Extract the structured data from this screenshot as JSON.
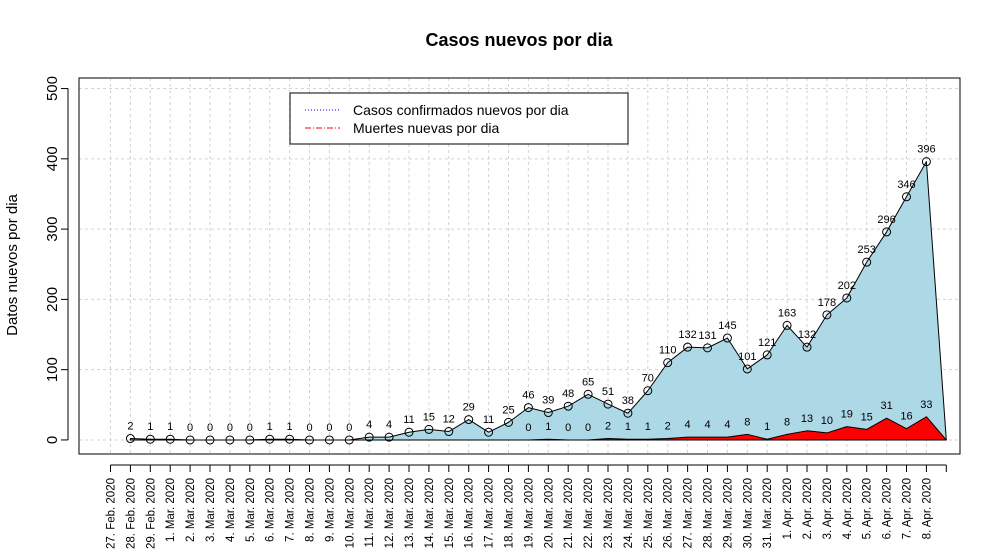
{
  "chart_data": {
    "type": "area",
    "title": "Casos nuevos por dia",
    "xlabel": "",
    "ylabel": "Datos nuevos por dia",
    "ylim": [
      -20,
      515
    ],
    "yticks": [
      0,
      100,
      200,
      300,
      400,
      500
    ],
    "grid": true,
    "legend_position": "top-center",
    "categories": [
      "27. Feb. 2020",
      "28. Feb. 2020",
      "29. Feb. 2020",
      "1. Mar. 2020",
      "2. Mar. 2020",
      "3. Mar. 2020",
      "4. Mar. 2020",
      "5. Mar. 2020",
      "6. Mar. 2020",
      "7. Mar. 2020",
      "8. Mar. 2020",
      "9. Mar. 2020",
      "10. Mar. 2020",
      "11. Mar. 2020",
      "12. Mar. 2020",
      "13. Mar. 2020",
      "14. Mar. 2020",
      "15. Mar. 2020",
      "16. Mar. 2020",
      "17. Mar. 2020",
      "18. Mar. 2020",
      "19. Mar. 2020",
      "20. Mar. 2020",
      "21. Mar. 2020",
      "22. Mar. 2020",
      "23. Mar. 2020",
      "24. Mar. 2020",
      "25. Mar. 2020",
      "26. Mar. 2020",
      "27. Mar. 2020",
      "28. Mar. 2020",
      "29. Mar. 2020",
      "30. Mar. 2020",
      "31. Mar. 2020",
      "1. Apr. 2020",
      "2. Apr. 2020",
      "3. Apr. 2020",
      "4. Apr. 2020",
      "5. Apr. 2020",
      "6. Apr. 2020",
      "7. Apr. 2020",
      "8. Apr. 2020"
    ],
    "series": [
      {
        "name": "Casos confirmados nuevos por dia",
        "color": "#0000ff",
        "fill": "#add8e6",
        "line_style": "dotted",
        "values": [
          null,
          2,
          1,
          1,
          0,
          0,
          0,
          0,
          1,
          1,
          0,
          0,
          0,
          4,
          4,
          11,
          15,
          12,
          29,
          11,
          25,
          46,
          39,
          48,
          65,
          51,
          38,
          70,
          110,
          132,
          131,
          145,
          101,
          121,
          163,
          132,
          178,
          202,
          253,
          296,
          346,
          396
        ]
      },
      {
        "name": "Muertes nuevas por dia",
        "color": "#ff0000",
        "fill": "#ff0000",
        "line_style": "dotdash",
        "values": [
          null,
          null,
          null,
          null,
          null,
          null,
          null,
          null,
          null,
          null,
          null,
          null,
          null,
          null,
          null,
          null,
          null,
          null,
          null,
          null,
          null,
          0,
          1,
          0,
          0,
          2,
          1,
          1,
          2,
          4,
          4,
          4,
          8,
          1,
          8,
          13,
          10,
          19,
          15,
          31,
          16,
          33
        ]
      }
    ]
  }
}
